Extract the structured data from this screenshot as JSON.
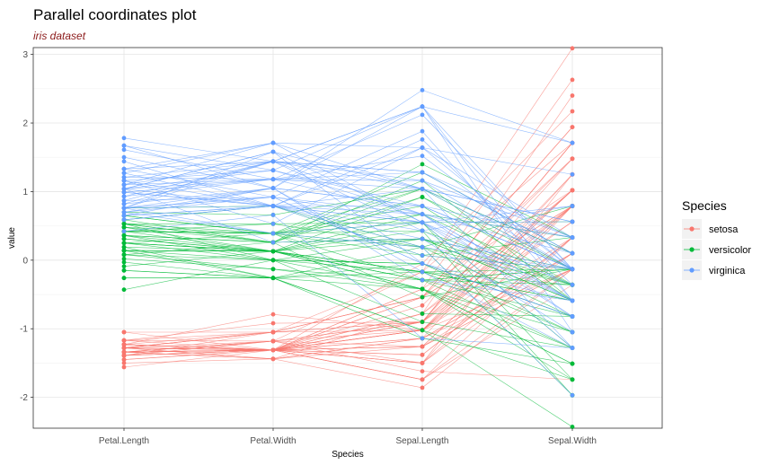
{
  "chart_data": {
    "type": "line",
    "title": "Parallel coordinates plot",
    "subtitle": "iris dataset",
    "xlabel": "Species",
    "ylabel": "value",
    "categories": [
      "Petal.Length",
      "Petal.Width",
      "Sepal.Length",
      "Sepal.Width"
    ],
    "ylim": [
      -2.45,
      3.1
    ],
    "yticks": [
      -2,
      -1,
      0,
      1,
      2,
      3
    ],
    "grid": true,
    "legend": {
      "title": "Species",
      "position": "right"
    },
    "series": [
      {
        "name": "setosa",
        "color": "#F8766D",
        "lines": [
          [
            -1.34,
            -1.31,
            -0.9,
            1.02
          ],
          [
            -1.34,
            -1.31,
            -1.14,
            -0.13
          ],
          [
            -1.39,
            -1.31,
            -1.38,
            0.33
          ],
          [
            -1.28,
            -1.31,
            -1.5,
            0.1
          ],
          [
            -1.34,
            -1.31,
            -1.02,
            1.25
          ],
          [
            -1.17,
            -1.05,
            -0.54,
            1.94
          ],
          [
            -1.34,
            -1.18,
            -1.5,
            0.79
          ],
          [
            -1.28,
            -1.31,
            -1.02,
            0.79
          ],
          [
            -1.34,
            -1.31,
            -1.74,
            -0.36
          ],
          [
            -1.28,
            -1.44,
            -1.14,
            0.1
          ],
          [
            -1.28,
            -1.31,
            -0.54,
            1.48
          ],
          [
            -1.23,
            -1.31,
            -1.26,
            0.79
          ],
          [
            -1.34,
            -1.44,
            -1.26,
            -0.13
          ],
          [
            -1.5,
            -1.44,
            -1.86,
            -0.13
          ],
          [
            -1.45,
            -1.31,
            -0.05,
            2.17
          ],
          [
            -1.28,
            -1.05,
            -0.17,
            3.09
          ],
          [
            -1.39,
            -1.05,
            -0.54,
            1.94
          ],
          [
            -1.34,
            -1.18,
            -0.9,
            1.02
          ],
          [
            -1.17,
            -1.18,
            -0.17,
            1.71
          ],
          [
            -1.28,
            -1.18,
            -0.9,
            1.71
          ],
          [
            -1.17,
            -1.31,
            -0.54,
            0.79
          ],
          [
            -1.28,
            -1.05,
            -0.9,
            1.48
          ],
          [
            -1.56,
            -1.31,
            -1.5,
            1.25
          ],
          [
            -1.17,
            -0.92,
            -0.9,
            0.56
          ],
          [
            -1.05,
            -1.31,
            -1.26,
            0.79
          ],
          [
            -1.23,
            -1.31,
            -1.02,
            -0.13
          ],
          [
            -1.23,
            -1.05,
            -1.02,
            0.79
          ],
          [
            -1.28,
            -1.31,
            -0.78,
            1.02
          ],
          [
            -1.34,
            -1.31,
            -0.78,
            0.79
          ],
          [
            -1.23,
            -1.31,
            -1.38,
            0.33
          ],
          [
            -1.23,
            -1.31,
            -1.26,
            0.1
          ],
          [
            -1.28,
            -1.05,
            -0.54,
            0.79
          ],
          [
            -1.28,
            -1.44,
            -0.78,
            2.4
          ],
          [
            -1.34,
            -1.31,
            -0.42,
            2.63
          ],
          [
            -1.28,
            -1.31,
            -1.14,
            0.1
          ],
          [
            -1.45,
            -1.31,
            -1.02,
            0.33
          ],
          [
            -1.39,
            -1.31,
            -0.42,
            1.02
          ],
          [
            -1.34,
            -1.44,
            -1.14,
            1.25
          ],
          [
            -1.39,
            -1.31,
            -1.74,
            -0.13
          ],
          [
            -1.28,
            -1.31,
            -0.9,
            0.79
          ],
          [
            -1.39,
            -1.18,
            -1.02,
            1.02
          ],
          [
            -1.39,
            -1.18,
            -1.62,
            -1.74
          ],
          [
            -1.39,
            -1.31,
            -1.74,
            0.33
          ],
          [
            -1.23,
            -0.79,
            -1.02,
            1.02
          ],
          [
            -1.05,
            -1.05,
            -0.9,
            1.71
          ],
          [
            -1.34,
            -1.18,
            -1.26,
            -0.13
          ],
          [
            -1.23,
            -1.31,
            -0.9,
            1.71
          ],
          [
            -1.34,
            -1.31,
            -1.5,
            0.33
          ],
          [
            -1.28,
            -1.31,
            -0.66,
            1.48
          ],
          [
            -1.34,
            -1.31,
            -1.02,
            0.56
          ]
        ]
      },
      {
        "name": "versicolor",
        "color": "#00BA38",
        "lines": [
          [
            0.53,
            0.26,
            1.4,
            0.33
          ],
          [
            0.42,
            0.39,
            0.67,
            0.33
          ],
          [
            0.65,
            0.39,
            1.28,
            0.1
          ],
          [
            0.14,
            0.13,
            -0.42,
            -1.74
          ],
          [
            0.48,
            0.39,
            0.79,
            -0.59
          ],
          [
            0.42,
            0.13,
            -0.17,
            -0.59
          ],
          [
            0.53,
            0.53,
            0.55,
            0.56
          ],
          [
            -0.26,
            -0.26,
            -1.14,
            -1.51
          ],
          [
            0.48,
            0.13,
            0.92,
            -0.36
          ],
          [
            0.08,
            0.26,
            -0.78,
            -0.82
          ],
          [
            -0.15,
            -0.26,
            -1.02,
            -2.43
          ],
          [
            0.25,
            0.39,
            0.07,
            -0.13
          ],
          [
            0.14,
            -0.26,
            0.19,
            -1.97
          ],
          [
            0.53,
            0.26,
            0.31,
            -0.36
          ],
          [
            -0.09,
            0.13,
            -0.29,
            -0.36
          ],
          [
            0.36,
            0.26,
            1.04,
            0.1
          ],
          [
            0.42,
            0.39,
            -0.29,
            -0.13
          ],
          [
            0.19,
            -0.26,
            -0.05,
            -0.82
          ],
          [
            0.42,
            0.39,
            0.43,
            -1.97
          ],
          [
            0.08,
            -0.13,
            -0.29,
            -1.28
          ],
          [
            0.59,
            0.79,
            0.07,
            0.33
          ],
          [
            0.14,
            0.13,
            0.31,
            -0.59
          ],
          [
            0.65,
            0.39,
            0.55,
            -1.28
          ],
          [
            0.53,
            0.0,
            0.31,
            -0.59
          ],
          [
            0.31,
            0.13,
            0.67,
            -0.36
          ],
          [
            0.36,
            0.26,
            0.92,
            -0.13
          ],
          [
            0.59,
            0.26,
            1.16,
            -0.59
          ],
          [
            0.7,
            0.66,
            1.04,
            -0.13
          ],
          [
            0.42,
            0.39,
            0.19,
            -0.36
          ],
          [
            -0.15,
            -0.26,
            -0.17,
            -1.05
          ],
          [
            0.02,
            -0.13,
            -0.42,
            -1.51
          ],
          [
            -0.03,
            -0.26,
            -0.42,
            -1.51
          ],
          [
            0.08,
            0.0,
            -0.05,
            -0.82
          ],
          [
            0.76,
            0.79,
            0.19,
            -0.82
          ],
          [
            0.42,
            0.39,
            -0.54,
            -0.13
          ],
          [
            0.42,
            0.53,
            0.19,
            0.79
          ],
          [
            0.53,
            0.39,
            1.04,
            0.1
          ],
          [
            0.36,
            0.13,
            0.55,
            -1.74
          ],
          [
            0.25,
            0.13,
            -0.29,
            -0.13
          ],
          [
            0.14,
            0.13,
            -0.42,
            -1.28
          ],
          [
            0.36,
            0.0,
            -0.42,
            -1.05
          ],
          [
            0.48,
            0.26,
            0.31,
            -0.13
          ],
          [
            0.14,
            0.0,
            -0.05,
            -1.05
          ],
          [
            -0.26,
            -0.26,
            -1.02,
            -1.74
          ],
          [
            0.25,
            0.13,
            -0.29,
            -0.82
          ],
          [
            0.25,
            0.0,
            -0.17,
            -0.13
          ],
          [
            0.25,
            0.13,
            -0.17,
            -0.36
          ],
          [
            0.31,
            0.13,
            0.43,
            -0.36
          ],
          [
            -0.43,
            0.0,
            -0.9,
            -1.28
          ],
          [
            0.19,
            0.13,
            -0.17,
            -0.59
          ]
        ]
      },
      {
        "name": "virginica",
        "color": "#619CFF",
        "lines": [
          [
            1.27,
            1.71,
            0.55,
            0.56
          ],
          [
            0.76,
            0.92,
            -0.05,
            -0.82
          ],
          [
            1.21,
            1.18,
            1.52,
            -0.13
          ],
          [
            1.04,
            0.79,
            0.55,
            -0.36
          ],
          [
            1.16,
            1.31,
            0.79,
            -0.13
          ],
          [
            1.61,
            1.18,
            2.12,
            -0.13
          ],
          [
            0.42,
            0.66,
            -1.14,
            -1.28
          ],
          [
            1.44,
            0.79,
            1.76,
            -0.36
          ],
          [
            1.16,
            0.79,
            1.04,
            -1.28
          ],
          [
            1.33,
            1.71,
            1.64,
            1.25
          ],
          [
            0.76,
            1.05,
            0.79,
            0.33
          ],
          [
            0.87,
            0.92,
            0.67,
            -0.82
          ],
          [
            0.99,
            1.18,
            1.16,
            -0.13
          ],
          [
            0.7,
            1.05,
            -0.17,
            -1.28
          ],
          [
            0.76,
            1.58,
            -0.05,
            -0.59
          ],
          [
            0.87,
            1.44,
            0.67,
            0.33
          ],
          [
            0.99,
            0.79,
            0.79,
            -0.13
          ],
          [
            1.67,
            1.31,
            2.24,
            1.71
          ],
          [
            1.78,
            1.44,
            2.24,
            -1.05
          ],
          [
            0.7,
            0.39,
            0.19,
            -1.97
          ],
          [
            1.1,
            1.44,
            1.28,
            0.33
          ],
          [
            0.65,
            1.05,
            -0.29,
            -0.59
          ],
          [
            1.67,
            1.05,
            2.24,
            -0.59
          ],
          [
            0.65,
            0.79,
            0.55,
            -0.82
          ],
          [
            1.1,
            1.18,
            1.04,
            0.56
          ],
          [
            1.27,
            0.79,
            1.64,
            0.33
          ],
          [
            0.59,
            0.79,
            0.43,
            -0.59
          ],
          [
            0.65,
            0.79,
            0.31,
            -0.13
          ],
          [
            1.04,
            1.18,
            0.67,
            -0.59
          ],
          [
            1.16,
            0.53,
            1.64,
            -0.13
          ],
          [
            1.33,
            0.92,
            1.88,
            -0.59
          ],
          [
            1.5,
            1.05,
            2.48,
            1.71
          ],
          [
            1.04,
            1.31,
            0.67,
            -0.59
          ],
          [
            0.76,
            0.39,
            0.55,
            -0.59
          ],
          [
            1.04,
            0.26,
            0.31,
            -1.05
          ],
          [
            1.33,
            1.44,
            2.24,
            -0.13
          ],
          [
            1.04,
            1.58,
            0.55,
            0.79
          ],
          [
            0.99,
            0.79,
            0.67,
            0.1
          ],
          [
            0.59,
            0.79,
            0.19,
            -0.13
          ],
          [
            0.93,
            1.18,
            1.28,
            0.1
          ],
          [
            1.04,
            1.58,
            1.04,
            0.1
          ],
          [
            0.76,
            1.44,
            1.28,
            0.1
          ],
          [
            0.76,
            0.92,
            -0.05,
            -0.82
          ],
          [
            1.21,
            1.44,
            1.16,
            0.33
          ],
          [
            1.1,
            1.71,
            1.04,
            0.56
          ],
          [
            0.82,
            1.44,
            1.04,
            -0.13
          ],
          [
            0.7,
            0.92,
            0.55,
            -1.28
          ],
          [
            0.82,
            1.05,
            0.79,
            -0.13
          ],
          [
            0.93,
            1.44,
            0.43,
            0.79
          ],
          [
            0.76,
            0.79,
            0.07,
            -0.13
          ]
        ]
      }
    ]
  }
}
